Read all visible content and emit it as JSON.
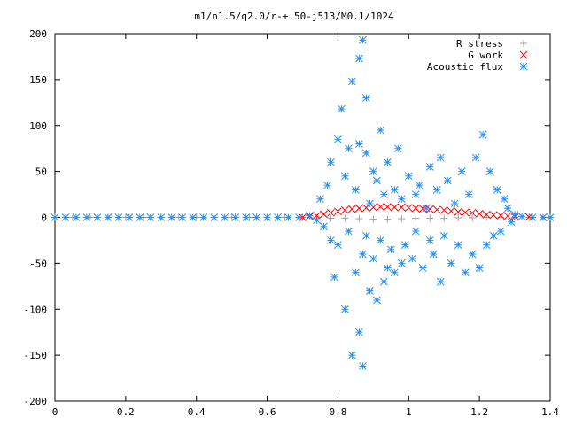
{
  "chart_data": {
    "type": "scatter",
    "title": "m1/n1.5/q2.0/r-+.50-j513/M0.1/1024",
    "xlabel": "",
    "ylabel": "",
    "xlim": [
      0,
      1.4
    ],
    "ylim": [
      -200,
      200
    ],
    "x_ticks": [
      "0",
      "0.2",
      "0.4",
      "0.6",
      "0.8",
      "1",
      "1.2",
      "1.4"
    ],
    "y_ticks": [
      "200",
      "150",
      "100",
      "50",
      "0",
      "-50",
      "-100",
      "-150",
      "-200"
    ],
    "grid": false,
    "legend_position": "top-right",
    "series": [
      {
        "name": "R stress",
        "marker": "plus",
        "color": "#a0a0a0",
        "points": [
          [
            0.0,
            0
          ],
          [
            0.05,
            0
          ],
          [
            0.1,
            0
          ],
          [
            0.15,
            0
          ],
          [
            0.2,
            0
          ],
          [
            0.25,
            0
          ],
          [
            0.3,
            0
          ],
          [
            0.35,
            0
          ],
          [
            0.4,
            0
          ],
          [
            0.45,
            0
          ],
          [
            0.5,
            0
          ],
          [
            0.55,
            0
          ],
          [
            0.6,
            0
          ],
          [
            0.65,
            0
          ],
          [
            0.7,
            0
          ],
          [
            0.74,
            -0.5
          ],
          [
            0.78,
            -1
          ],
          [
            0.82,
            -1
          ],
          [
            0.86,
            -1.5
          ],
          [
            0.9,
            -2
          ],
          [
            0.94,
            -2
          ],
          [
            0.98,
            -1.5
          ],
          [
            1.02,
            -1
          ],
          [
            1.06,
            -1
          ],
          [
            1.1,
            -1
          ],
          [
            1.14,
            -0.5
          ],
          [
            1.18,
            -0.5
          ],
          [
            1.22,
            0
          ],
          [
            1.26,
            0
          ],
          [
            1.3,
            0
          ],
          [
            1.34,
            0
          ],
          [
            1.38,
            0
          ],
          [
            1.4,
            0
          ]
        ]
      },
      {
        "name": "G work",
        "marker": "cross",
        "color": "#ff0000",
        "points": [
          [
            0.7,
            0
          ],
          [
            0.72,
            1
          ],
          [
            0.74,
            2
          ],
          [
            0.76,
            3.5
          ],
          [
            0.78,
            5
          ],
          [
            0.8,
            6.5
          ],
          [
            0.82,
            8
          ],
          [
            0.84,
            9
          ],
          [
            0.86,
            10
          ],
          [
            0.88,
            10.5
          ],
          [
            0.9,
            11
          ],
          [
            0.92,
            11.5
          ],
          [
            0.94,
            11.5
          ],
          [
            0.96,
            11
          ],
          [
            0.98,
            11
          ],
          [
            1.0,
            10.5
          ],
          [
            1.02,
            10
          ],
          [
            1.04,
            9.5
          ],
          [
            1.06,
            9
          ],
          [
            1.08,
            8.5
          ],
          [
            1.1,
            8
          ],
          [
            1.12,
            7
          ],
          [
            1.14,
            6
          ],
          [
            1.16,
            5.5
          ],
          [
            1.18,
            5
          ],
          [
            1.2,
            4
          ],
          [
            1.22,
            3
          ],
          [
            1.24,
            2.5
          ],
          [
            1.26,
            2
          ],
          [
            1.28,
            1.5
          ],
          [
            1.3,
            1
          ],
          [
            1.34,
            0.5
          ],
          [
            1.38,
            0
          ]
        ]
      },
      {
        "name": "Acoustic flux",
        "marker": "star",
        "color": "#1e90ff",
        "points": [
          [
            0.0,
            0
          ],
          [
            0.03,
            0
          ],
          [
            0.06,
            0
          ],
          [
            0.09,
            0
          ],
          [
            0.12,
            0
          ],
          [
            0.15,
            0
          ],
          [
            0.18,
            0
          ],
          [
            0.21,
            0
          ],
          [
            0.24,
            0
          ],
          [
            0.27,
            0
          ],
          [
            0.3,
            0
          ],
          [
            0.33,
            0
          ],
          [
            0.36,
            0
          ],
          [
            0.39,
            0
          ],
          [
            0.42,
            0
          ],
          [
            0.45,
            0
          ],
          [
            0.48,
            0
          ],
          [
            0.51,
            0
          ],
          [
            0.54,
            0
          ],
          [
            0.57,
            0
          ],
          [
            0.6,
            0
          ],
          [
            0.63,
            0
          ],
          [
            0.66,
            0
          ],
          [
            0.69,
            0
          ],
          [
            0.72,
            2
          ],
          [
            0.74,
            -3
          ],
          [
            0.75,
            20
          ],
          [
            0.76,
            -10
          ],
          [
            0.77,
            35
          ],
          [
            0.78,
            -25
          ],
          [
            0.78,
            60
          ],
          [
            0.79,
            -65
          ],
          [
            0.8,
            85
          ],
          [
            0.8,
            -30
          ],
          [
            0.81,
            118
          ],
          [
            0.82,
            -100
          ],
          [
            0.82,
            45
          ],
          [
            0.83,
            75
          ],
          [
            0.83,
            -15
          ],
          [
            0.84,
            148
          ],
          [
            0.84,
            -150
          ],
          [
            0.85,
            -60
          ],
          [
            0.85,
            30
          ],
          [
            0.86,
            173
          ],
          [
            0.86,
            -125
          ],
          [
            0.86,
            80
          ],
          [
            0.87,
            193
          ],
          [
            0.87,
            -162
          ],
          [
            0.87,
            -40
          ],
          [
            0.88,
            130
          ],
          [
            0.88,
            -20
          ],
          [
            0.88,
            70
          ],
          [
            0.89,
            -80
          ],
          [
            0.89,
            15
          ],
          [
            0.9,
            50
          ],
          [
            0.9,
            -45
          ],
          [
            0.91,
            -90
          ],
          [
            0.91,
            40
          ],
          [
            0.92,
            95
          ],
          [
            0.92,
            -25
          ],
          [
            0.93,
            -70
          ],
          [
            0.93,
            25
          ],
          [
            0.94,
            -55
          ],
          [
            0.94,
            60
          ],
          [
            0.95,
            -35
          ],
          [
            0.96,
            30
          ],
          [
            0.96,
            -60
          ],
          [
            0.97,
            75
          ],
          [
            0.98,
            -50
          ],
          [
            0.98,
            20
          ],
          [
            0.99,
            -30
          ],
          [
            1.0,
            45
          ],
          [
            1.01,
            -45
          ],
          [
            1.02,
            25
          ],
          [
            1.02,
            -15
          ],
          [
            1.03,
            35
          ],
          [
            1.04,
            -55
          ],
          [
            1.05,
            10
          ],
          [
            1.06,
            -25
          ],
          [
            1.06,
            55
          ],
          [
            1.07,
            -40
          ],
          [
            1.08,
            30
          ],
          [
            1.09,
            -70
          ],
          [
            1.09,
            65
          ],
          [
            1.1,
            -20
          ],
          [
            1.11,
            40
          ],
          [
            1.12,
            -50
          ],
          [
            1.13,
            15
          ],
          [
            1.14,
            -30
          ],
          [
            1.15,
            50
          ],
          [
            1.16,
            -60
          ],
          [
            1.17,
            25
          ],
          [
            1.18,
            -40
          ],
          [
            1.19,
            65
          ],
          [
            1.2,
            -55
          ],
          [
            1.21,
            90
          ],
          [
            1.22,
            -30
          ],
          [
            1.23,
            50
          ],
          [
            1.24,
            -20
          ],
          [
            1.25,
            30
          ],
          [
            1.26,
            -15
          ],
          [
            1.27,
            20
          ],
          [
            1.28,
            10
          ],
          [
            1.29,
            -5
          ],
          [
            1.3,
            3
          ],
          [
            1.32,
            1
          ],
          [
            1.35,
            0
          ],
          [
            1.38,
            0
          ],
          [
            1.4,
            0
          ]
        ]
      }
    ]
  }
}
